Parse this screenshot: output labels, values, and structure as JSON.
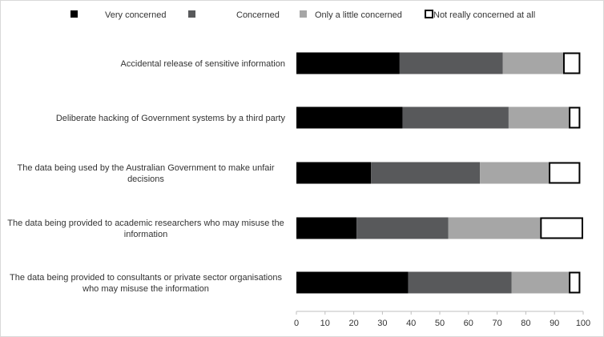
{
  "chart_data": {
    "type": "bar",
    "orientation": "horizontal",
    "stacked": true,
    "categories": [
      "Accidental release of sensitive information",
      "Deliberate hacking of Government systems by a third party",
      "The data being used by the Australian Government to make unfair decisions",
      "The data being provided to academic researchers who may misuse the information",
      "The data being provided to consultants or private sector organisations who may misuse the information"
    ],
    "category_lines": [
      [
        "Accidental release of sensitive information"
      ],
      [
        "Deliberate hacking of Government systems by a third party"
      ],
      [
        "The data being used by the Australian Government to make unfair",
        "decisions"
      ],
      [
        "The data being provided to academic researchers who may misuse the",
        "information"
      ],
      [
        "The data being provided to consultants or private sector organisations",
        "who may misuse the information"
      ]
    ],
    "series": [
      {
        "name": "Very concerned",
        "values": [
          36,
          37,
          26,
          21,
          39
        ],
        "color": "#000000"
      },
      {
        "name": "Concerned",
        "values": [
          36,
          37,
          38,
          32,
          36
        ],
        "color": "#58595b"
      },
      {
        "name": "Only a little concerned",
        "values": [
          21,
          21,
          24,
          32,
          20
        ],
        "color": "#a6a6a6"
      },
      {
        "name": "Not really concerned at all",
        "values": [
          6,
          4,
          11,
          15,
          4
        ],
        "color": "#ffffff",
        "outline": "#000000"
      }
    ],
    "xlim": [
      0,
      100
    ],
    "xticks": [
      0,
      10,
      20,
      30,
      40,
      50,
      60,
      70,
      80,
      90,
      100
    ],
    "legend_position": "top",
    "grid": false,
    "title": "",
    "xlabel": "",
    "ylabel": ""
  }
}
